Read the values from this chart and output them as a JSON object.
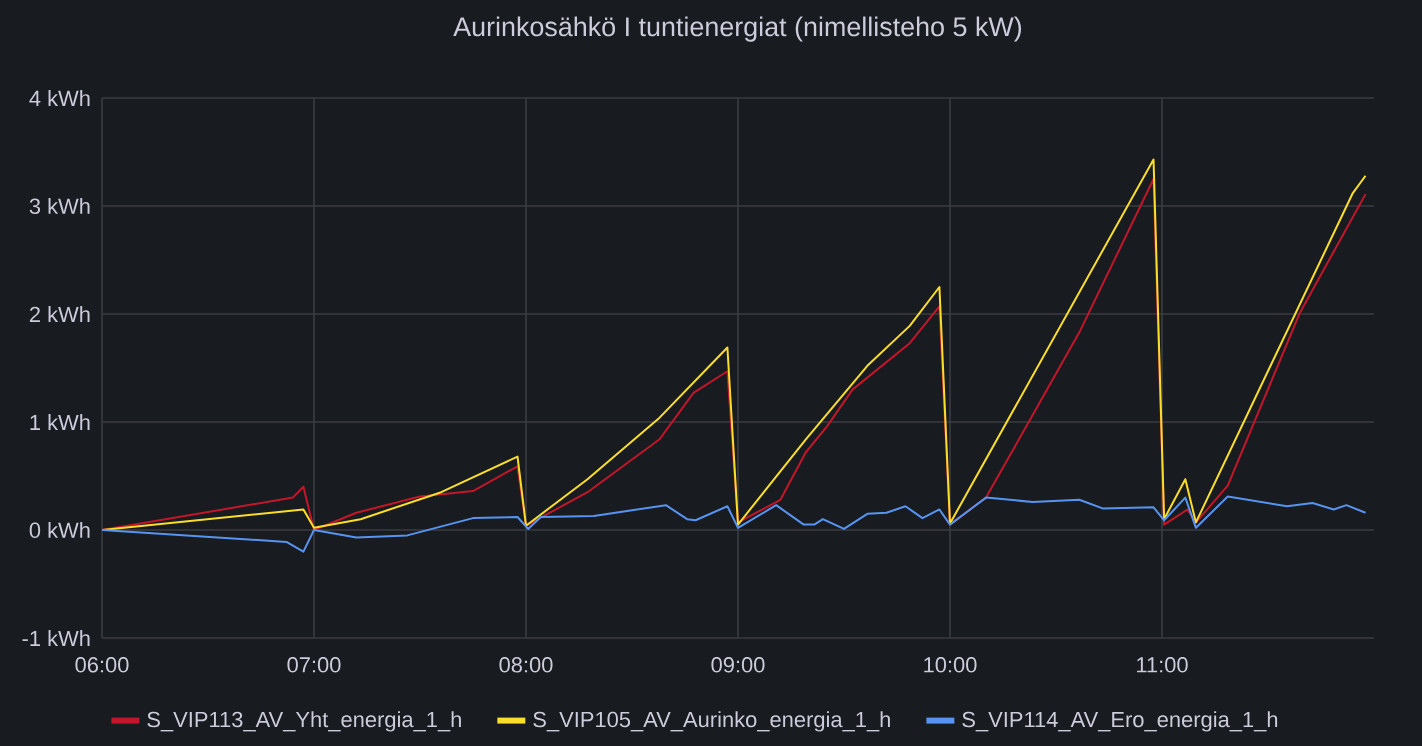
{
  "chart_data": {
    "type": "line",
    "title": "Aurinkosähkö I tuntienergiat (nimellisteho 5 kW)",
    "xlim": [
      6,
      12
    ],
    "xticks": [
      {
        "value": 6,
        "label": "06:00"
      },
      {
        "value": 7,
        "label": "07:00"
      },
      {
        "value": 8,
        "label": "08:00"
      },
      {
        "value": 9,
        "label": "09:00"
      },
      {
        "value": 10,
        "label": "10:00"
      },
      {
        "value": 11,
        "label": "11:00"
      }
    ],
    "ylim": [
      -1,
      4
    ],
    "yticks": [
      {
        "value": -1,
        "label": "-1 kWh"
      },
      {
        "value": 0,
        "label": "0 kWh"
      },
      {
        "value": 1,
        "label": "1 kWh"
      },
      {
        "value": 2,
        "label": "2 kWh"
      },
      {
        "value": 3,
        "label": "3 kWh"
      },
      {
        "value": 4,
        "label": "4 kWh"
      }
    ],
    "grid": true,
    "legend": "bottom",
    "marker": "none",
    "line_style": "solid",
    "series": [
      {
        "name": "S_VIP113_AV_Yht_energia_1_h",
        "color": "#c4162a",
        "x": [
          6.0,
          6.9,
          6.95,
          7.0,
          7.2,
          7.5,
          7.75,
          7.96,
          8.0,
          8.29,
          8.63,
          8.79,
          8.95,
          9.0,
          9.2,
          9.32,
          9.42,
          9.54,
          9.81,
          9.95,
          10.0,
          10.17,
          10.61,
          10.96,
          11.01,
          11.12,
          11.16,
          11.31,
          11.65,
          11.96
        ],
        "values": [
          0,
          0.3,
          0.4,
          0,
          0.16,
          0.31,
          0.36,
          0.59,
          0.04,
          0.35,
          0.84,
          1.27,
          1.47,
          0.07,
          0.28,
          0.72,
          0.96,
          1.3,
          1.73,
          2.07,
          0.05,
          0.3,
          1.83,
          3.25,
          0.05,
          0.19,
          0.07,
          0.41,
          2.01,
          3.11
        ]
      },
      {
        "name": "S_VIP105_AV_Aurinko_energia_1_h",
        "color": "#fade2a",
        "x": [
          6.0,
          6.95,
          7.0,
          7.22,
          7.6,
          7.96,
          8.0,
          8.29,
          8.63,
          8.95,
          9.0,
          9.32,
          9.61,
          9.81,
          9.95,
          10.0,
          10.96,
          11.01,
          11.11,
          11.16,
          11.9,
          11.96
        ],
        "values": [
          0,
          0.19,
          0.02,
          0.1,
          0.35,
          0.68,
          0.04,
          0.47,
          1.04,
          1.69,
          0.05,
          0.84,
          1.52,
          1.89,
          2.25,
          0.06,
          3.43,
          0.1,
          0.47,
          0.07,
          3.12,
          3.28
        ]
      },
      {
        "name": "S_VIP114_AV_Ero_energia_1_h",
        "color": "#5794f2",
        "x": [
          6.0,
          6.87,
          6.95,
          7.0,
          7.2,
          7.44,
          7.75,
          7.96,
          8.01,
          8.07,
          8.32,
          8.66,
          8.76,
          8.8,
          8.95,
          9.0,
          9.18,
          9.31,
          9.36,
          9.4,
          9.5,
          9.61,
          9.7,
          9.79,
          9.87,
          9.95,
          10.0,
          10.17,
          10.39,
          10.61,
          10.72,
          10.96,
          11.01,
          11.11,
          11.16,
          11.31,
          11.59,
          11.71,
          11.81,
          11.87,
          11.96
        ],
        "values": [
          0,
          -0.11,
          -0.2,
          0,
          -0.07,
          -0.05,
          0.11,
          0.12,
          0.01,
          0.12,
          0.13,
          0.23,
          0.1,
          0.09,
          0.22,
          0.02,
          0.23,
          0.05,
          0.05,
          0.1,
          0.01,
          0.15,
          0.16,
          0.22,
          0.11,
          0.19,
          0.05,
          0.3,
          0.26,
          0.28,
          0.2,
          0.21,
          0.09,
          0.3,
          0.02,
          0.31,
          0.22,
          0.25,
          0.19,
          0.23,
          0.16
        ]
      }
    ]
  }
}
